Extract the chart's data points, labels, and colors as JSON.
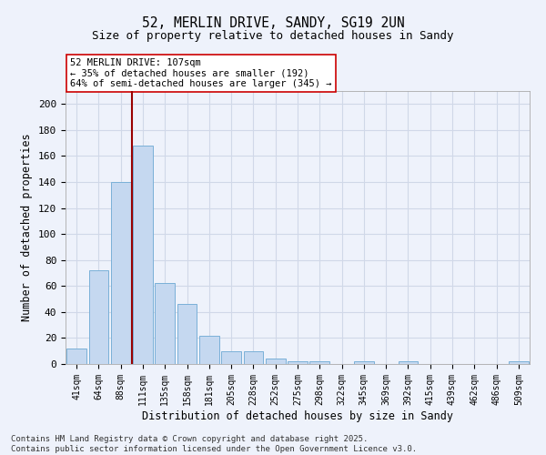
{
  "title_line1": "52, MERLIN DRIVE, SANDY, SG19 2UN",
  "title_line2": "Size of property relative to detached houses in Sandy",
  "xlabel": "Distribution of detached houses by size in Sandy",
  "ylabel": "Number of detached properties",
  "categories": [
    "41sqm",
    "64sqm",
    "88sqm",
    "111sqm",
    "135sqm",
    "158sqm",
    "181sqm",
    "205sqm",
    "228sqm",
    "252sqm",
    "275sqm",
    "298sqm",
    "322sqm",
    "345sqm",
    "369sqm",
    "392sqm",
    "415sqm",
    "439sqm",
    "462sqm",
    "486sqm",
    "509sqm"
  ],
  "values": [
    12,
    72,
    140,
    168,
    62,
    46,
    22,
    10,
    10,
    4,
    2,
    2,
    0,
    2,
    0,
    2,
    0,
    0,
    0,
    0,
    2
  ],
  "bar_color": "#c5d8f0",
  "bar_edge_color": "#7ab0d8",
  "vline_index": 3,
  "vline_color": "#990000",
  "annotation_line1": "52 MERLIN DRIVE: 107sqm",
  "annotation_line2": "← 35% of detached houses are smaller (192)",
  "annotation_line3": "64% of semi-detached houses are larger (345) →",
  "annotation_box_color": "#ffffff",
  "annotation_box_edge": "#cc0000",
  "ylim": [
    0,
    210
  ],
  "yticks": [
    0,
    20,
    40,
    60,
    80,
    100,
    120,
    140,
    160,
    180,
    200
  ],
  "grid_color": "#d0d8e8",
  "bg_color": "#eef2fb",
  "footer_line1": "Contains HM Land Registry data © Crown copyright and database right 2025.",
  "footer_line2": "Contains public sector information licensed under the Open Government Licence v3.0."
}
